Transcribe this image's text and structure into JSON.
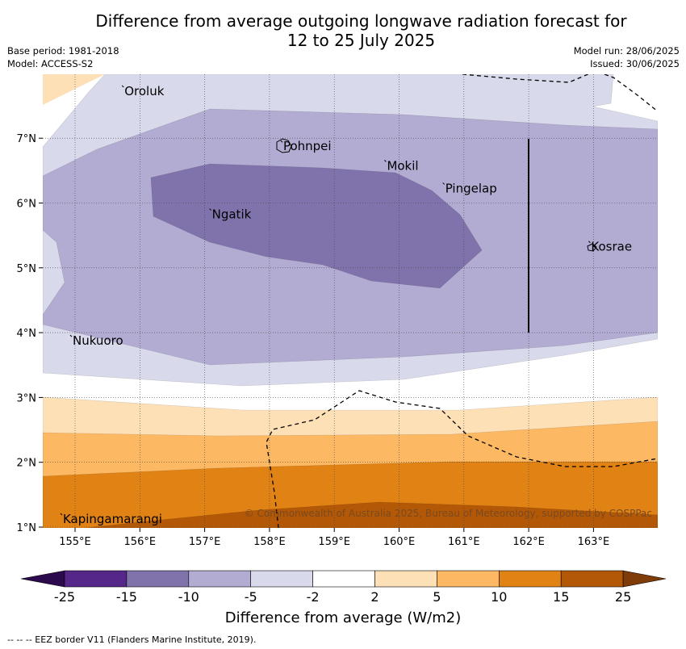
{
  "title_line1": "Difference from average outgoing longwave radiation forecast for",
  "title_line2": "12 to 25 July 2025",
  "base_period": "Base period: 1981-2018",
  "model": "Model: ACCESS-S2",
  "model_run": "Model run: 28/06/2025",
  "issued": "Issued: 30/06/2025",
  "copyright": "© Commonwealth of Australia 2025, Bureau of Meteorology, supported by COSPPac",
  "footer": "--  --  -- EEZ border V11 (Flanders Marine Institute, 2019).",
  "colorbar": {
    "title": "Difference from average (W/m2)",
    "ticks": [
      "-25",
      "-15",
      "-10",
      "-5",
      "-2",
      "2",
      "5",
      "10",
      "15",
      "25"
    ],
    "colors": {
      "under": "#2d0a4e",
      "m25_m15": "#542788",
      "m15_m10": "#8073ac",
      "m10_m5": "#b2abd2",
      "m5_m2": "#d8daeb",
      "m2_2": "#ffffff",
      "p2_5": "#fee0b6",
      "p5_10": "#fdb863",
      "p10_15": "#e08214",
      "p15_25": "#b35806",
      "over": "#7f3b08"
    }
  },
  "axes": {
    "lon_ticks": [
      "155°E",
      "156°E",
      "157°E",
      "158°E",
      "159°E",
      "160°E",
      "161°E",
      "162°E",
      "163°E"
    ],
    "lat_ticks": [
      "7°N",
      "6°N",
      "5°N",
      "4°N",
      "3°N",
      "2°N",
      "1°N"
    ]
  },
  "places": [
    {
      "name": "Oroluk",
      "lon": 155.75,
      "lat": 7.7
    },
    {
      "name": "Pohnpei",
      "lon": 158.2,
      "lat": 6.85
    },
    {
      "name": "Mokil",
      "lon": 159.8,
      "lat": 6.55
    },
    {
      "name": "Pingelap",
      "lon": 160.7,
      "lat": 6.2
    },
    {
      "name": "Ngatik",
      "lon": 157.1,
      "lat": 5.8
    },
    {
      "name": "Kosrae",
      "lon": 162.95,
      "lat": 5.3
    },
    {
      "name": "Nukuoro",
      "lon": 154.95,
      "lat": 3.85
    },
    {
      "name": "Kapingamarangi",
      "lon": 154.8,
      "lat": 1.1
    }
  ]
}
